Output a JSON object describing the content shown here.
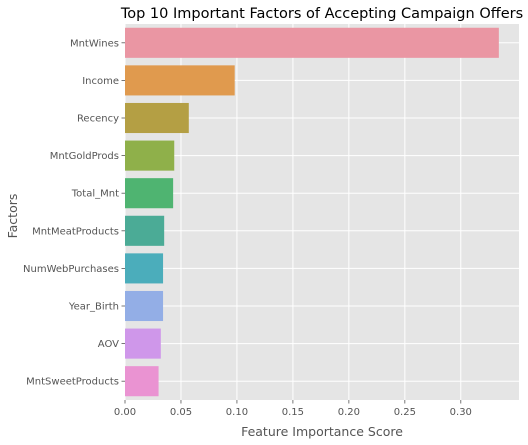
{
  "chart_data": {
    "type": "bar",
    "orientation": "horizontal",
    "title": "Top 10 Important Factors of Accepting Campaign Offers",
    "xlabel": "Feature Importance Score",
    "ylabel": "Factors",
    "categories": [
      "MntWines",
      "Income",
      "Recency",
      "MntGoldProds",
      "Total_Mnt",
      "MntMeatProducts",
      "NumWebPurchases",
      "Year_Birth",
      "AOV",
      "MntSweetProducts"
    ],
    "values": [
      0.334,
      0.098,
      0.057,
      0.044,
      0.043,
      0.035,
      0.034,
      0.034,
      0.032,
      0.03
    ],
    "colors": [
      "#ea96a3",
      "#e09a4e",
      "#b49f44",
      "#8fb04a",
      "#4fb471",
      "#4bab96",
      "#4badbb",
      "#93aee6",
      "#cf97ea",
      "#ea93d2"
    ],
    "xlim": [
      0,
      0.352
    ],
    "xticks": [
      0.0,
      0.05,
      0.1,
      0.15,
      0.2,
      0.25,
      0.3
    ],
    "xtick_labels": [
      "0.00",
      "0.05",
      "0.10",
      "0.15",
      "0.20",
      "0.25",
      "0.30"
    ],
    "grid": true,
    "style": "ggplot",
    "background": "#e5e5e5",
    "grid_color": "#ffffff"
  }
}
